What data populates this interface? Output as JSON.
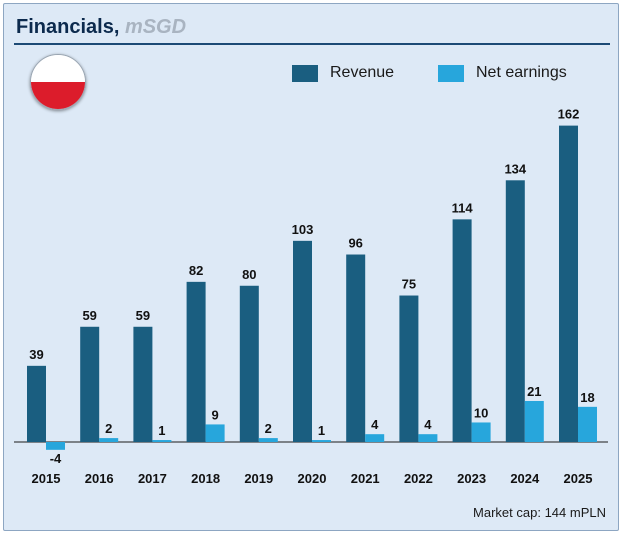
{
  "title": "Financials,",
  "title_unit": "mSGD",
  "footer": "Market cap: 144 mPLN",
  "colors": {
    "revenue": "#1a5e80",
    "net_earnings": "#27a6dc",
    "background": "#dde9f6"
  },
  "flag_icon": "poland-flag-icon",
  "chart_data": {
    "type": "bar",
    "categories": [
      "2015",
      "2016",
      "2017",
      "2018",
      "2019",
      "2020",
      "2021",
      "2022",
      "2023",
      "2024",
      "2025"
    ],
    "series": [
      {
        "name": "Revenue",
        "values": [
          39,
          59,
          59,
          82,
          80,
          103,
          96,
          75,
          114,
          134,
          162
        ]
      },
      {
        "name": "Net earnings",
        "values": [
          -4,
          2,
          1,
          9,
          2,
          1,
          4,
          4,
          10,
          21,
          18
        ]
      }
    ],
    "legend_position": "top-right",
    "grid": false
  }
}
